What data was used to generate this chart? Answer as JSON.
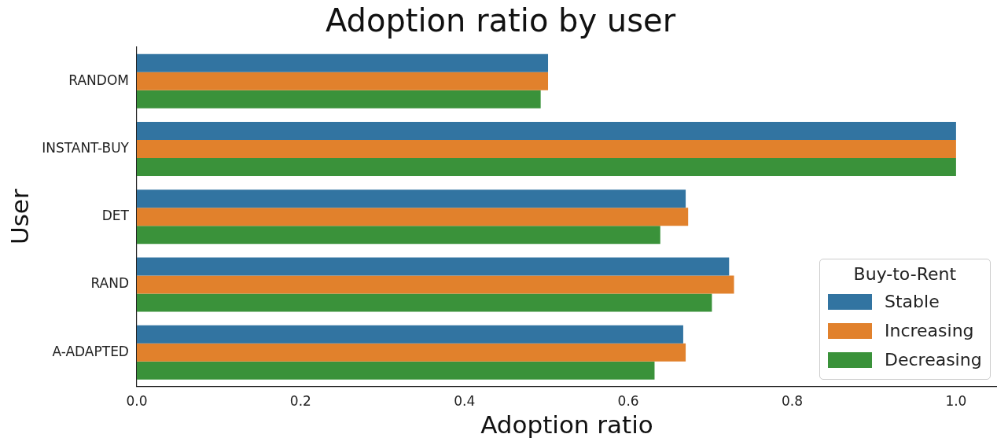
{
  "chart_data": {
    "type": "bar",
    "orientation": "horizontal",
    "title": "Adoption ratio by user",
    "xlabel": "Adoption ratio",
    "ylabel": "User",
    "categories": [
      "RANDOM",
      "INSTANT-BUY",
      "DET",
      "RAND",
      "A-ADAPTED"
    ],
    "series": [
      {
        "name": "Stable",
        "color": "#3274a1",
        "values": [
          0.502,
          1.0,
          0.67,
          0.723,
          0.667
        ]
      },
      {
        "name": "Increasing",
        "color": "#e1812c",
        "values": [
          0.502,
          1.0,
          0.673,
          0.729,
          0.67
        ]
      },
      {
        "name": "Decreasing",
        "color": "#3a923a",
        "values": [
          0.493,
          1.0,
          0.639,
          0.702,
          0.632
        ]
      }
    ],
    "xlim": [
      0,
      1.05
    ],
    "xticks": [
      {
        "value": 0,
        "label": "0.0"
      },
      {
        "value": 0.2,
        "label": "0.2"
      },
      {
        "value": 0.4,
        "label": "0.4"
      },
      {
        "value": 0.6,
        "label": "0.6"
      },
      {
        "value": 0.8,
        "label": "0.8"
      },
      {
        "value": 1,
        "label": "1.0"
      }
    ],
    "legend": "bottom right",
    "legend_title": "Buy-to-Rent",
    "grid": false
  }
}
